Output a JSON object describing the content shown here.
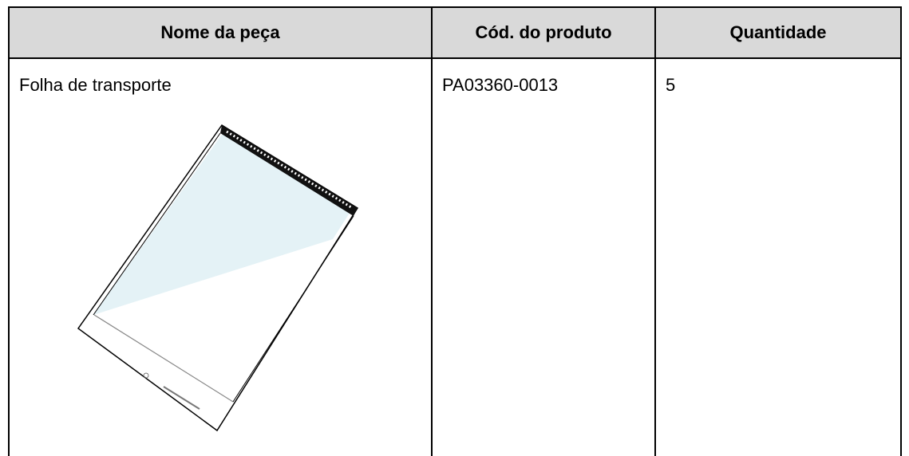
{
  "table": {
    "header": [
      "Nome da peça",
      "Cód. do produto",
      "Quantidade"
    ],
    "rows": [
      [
        "Folha de transporte",
        "PA03360-0013",
        "5"
      ]
    ]
  }
}
